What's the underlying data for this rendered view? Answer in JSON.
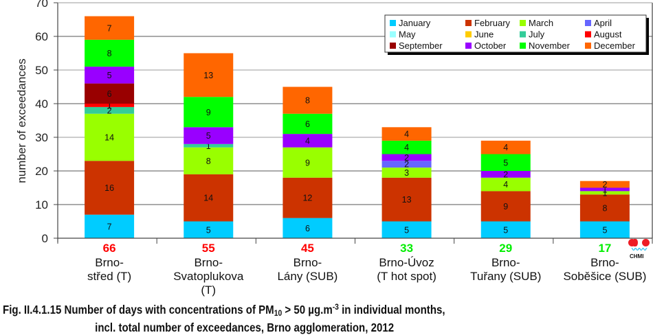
{
  "chart_data": {
    "type": "bar",
    "stacked": true,
    "title": "",
    "xlabel": "",
    "ylabel": "number of exceedances",
    "ylim": [
      0,
      70
    ],
    "yticks": [
      0,
      10,
      20,
      30,
      40,
      50,
      60,
      70
    ],
    "grid": "horizontal",
    "legend_position": "top-right",
    "categories": [
      {
        "lines": [
          "Brno-",
          "střed (T)"
        ],
        "total": 66,
        "total_color": "#ff0000"
      },
      {
        "lines": [
          "Brno-",
          "Svatoplukova",
          "(T)"
        ],
        "total": 55,
        "total_color": "#ff0000"
      },
      {
        "lines": [
          "Brno-",
          "Lány (SUB)"
        ],
        "total": 45,
        "total_color": "#ff0000"
      },
      {
        "lines": [
          "Brno-Úvoz",
          "(T hot spot)"
        ],
        "total": 33,
        "total_color": "#00ee00"
      },
      {
        "lines": [
          "Brno-",
          "Tuřany (SUB)"
        ],
        "total": 29,
        "total_color": "#00ee00"
      },
      {
        "lines": [
          "Brno-",
          "Soběšice (SUB)"
        ],
        "total": 17,
        "total_color": "#00ee00"
      }
    ],
    "series": [
      {
        "name": "January",
        "color": "#00ccff",
        "values": [
          7,
          5,
          6,
          5,
          5,
          5
        ]
      },
      {
        "name": "February",
        "color": "#cc3300",
        "values": [
          16,
          14,
          12,
          13,
          9,
          8
        ]
      },
      {
        "name": "March",
        "color": "#99ff00",
        "values": [
          14,
          8,
          9,
          3,
          4,
          1
        ]
      },
      {
        "name": "April",
        "color": "#6666ff",
        "values": [
          0,
          0,
          0,
          2,
          0,
          0
        ]
      },
      {
        "name": "May",
        "color": "#99ffff",
        "values": [
          0,
          0,
          0,
          0,
          0,
          0
        ]
      },
      {
        "name": "June",
        "color": "#ffcc00",
        "values": [
          0,
          0,
          0,
          0,
          0,
          0
        ]
      },
      {
        "name": "July",
        "color": "#33cc99",
        "values": [
          2,
          1,
          0,
          0,
          0,
          0
        ]
      },
      {
        "name": "August",
        "color": "#ff0000",
        "values": [
          1,
          0,
          0,
          0,
          0,
          0
        ]
      },
      {
        "name": "September",
        "color": "#990000",
        "values": [
          6,
          0,
          0,
          0,
          0,
          0
        ]
      },
      {
        "name": "October",
        "color": "#9900ff",
        "values": [
          5,
          5,
          4,
          2,
          2,
          1
        ]
      },
      {
        "name": "November",
        "color": "#00ff00",
        "values": [
          8,
          9,
          6,
          4,
          5,
          0
        ]
      },
      {
        "name": "December",
        "color": "#ff6600",
        "values": [
          7,
          13,
          8,
          4,
          4,
          2
        ]
      }
    ]
  },
  "caption": {
    "line1_prefix": "Fig. II.4.1.15  Number of days with concentrations of PM",
    "pm_sub": "10",
    "line1_mid": " > 50 µg.m",
    "unit_sup": "-3",
    "line1_suffix": " in individual months,",
    "line2": "incl. total number of exceedances, Brno agglomeration, 2012"
  },
  "logo": {
    "text": "CHMI"
  }
}
